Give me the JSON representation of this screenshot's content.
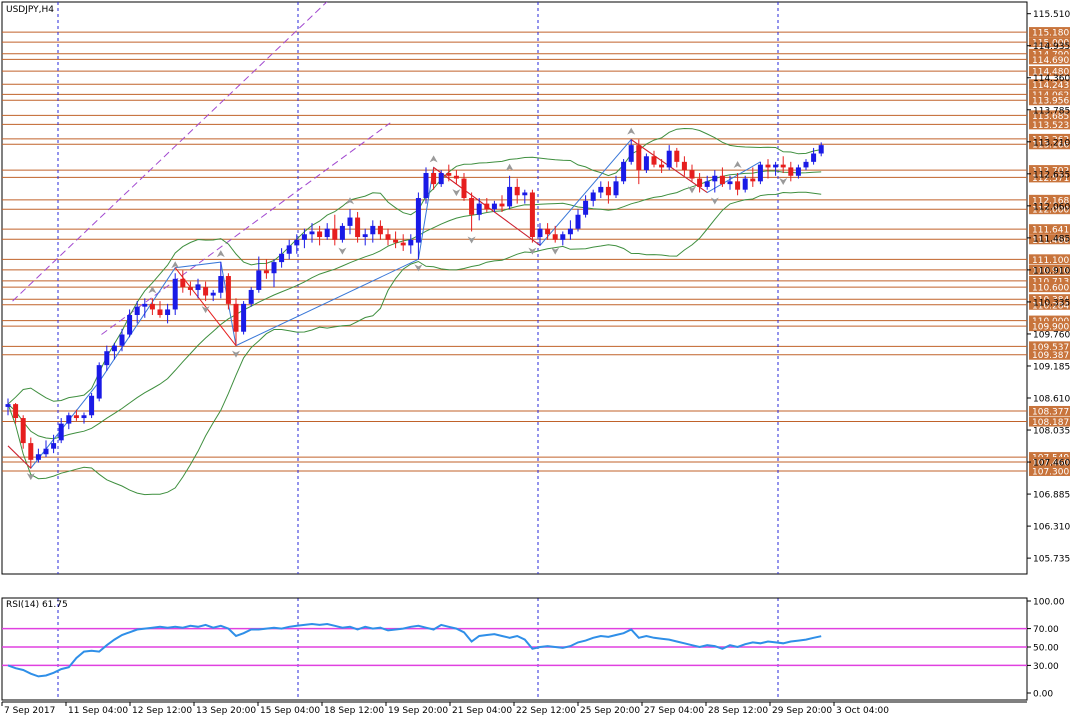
{
  "chart_data": {
    "type": "candlestick",
    "symbol_label": "USDJPY,H4",
    "y_ticks": [
      "115.510",
      "114.935",
      "114.360",
      "113.785",
      "113.210",
      "112.635",
      "112.060",
      "111.485",
      "110.910",
      "110.335",
      "109.760",
      "109.185",
      "108.610",
      "108.035",
      "107.460",
      "106.885",
      "106.310",
      "105.735"
    ],
    "x_tick_labels": [
      "7 Sep 2017",
      "11 Sep 04:00",
      "12 Sep 12:00",
      "13 Sep 20:00",
      "15 Sep 04:00",
      "18 Sep 12:00",
      "19 Sep 20:00",
      "21 Sep 04:00",
      "22 Sep 12:00",
      "25 Sep 20:00",
      "27 Sep 04:00",
      "28 Sep 12:00",
      "29 Sep 20:00",
      "3 Oct 04:00"
    ],
    "ylim": [
      105.45,
      115.72
    ],
    "levels": [
      "115.180",
      "115.000",
      "114.790",
      "114.690",
      "114.480",
      "114.243",
      "114.062",
      "113.956",
      "113.685",
      "113.523",
      "113.262",
      "113.166",
      "112.702",
      "112.571",
      "112.168",
      "112.000",
      "111.641",
      "111.460",
      "111.100",
      "110.910",
      "110.713",
      "110.600",
      "110.384",
      "110.284",
      "110.000",
      "109.900",
      "109.537",
      "109.387",
      "108.377",
      "108.187",
      "107.549",
      "107.460",
      "107.300"
    ],
    "channel_lines": [
      {
        "x": [
          0.6,
          42.4
        ],
        "y": [
          110.35,
          115.78
        ]
      },
      {
        "x": [
          12.3,
          50.3
        ],
        "y": [
          109.75,
          113.55
        ]
      }
    ],
    "candles": [
      {
        "i": 0,
        "o": 108.45,
        "h": 108.6,
        "l": 108.3,
        "c": 108.5
      },
      {
        "i": 1,
        "o": 108.5,
        "h": 108.52,
        "l": 108.15,
        "c": 108.25
      },
      {
        "i": 2,
        "o": 108.25,
        "h": 108.3,
        "l": 107.7,
        "c": 107.8
      },
      {
        "i": 3,
        "o": 107.8,
        "h": 107.9,
        "l": 107.35,
        "c": 107.5
      },
      {
        "i": 4,
        "o": 107.5,
        "h": 107.7,
        "l": 107.45,
        "c": 107.6
      },
      {
        "i": 5,
        "o": 107.6,
        "h": 107.85,
        "l": 107.55,
        "c": 107.7
      },
      {
        "i": 6,
        "o": 107.7,
        "h": 107.95,
        "l": 107.62,
        "c": 107.8
      },
      {
        "i": 7,
        "o": 107.85,
        "h": 108.25,
        "l": 107.8,
        "c": 108.15
      },
      {
        "i": 8,
        "o": 108.15,
        "h": 108.35,
        "l": 108.05,
        "c": 108.3
      },
      {
        "i": 9,
        "o": 108.3,
        "h": 108.4,
        "l": 108.2,
        "c": 108.25
      },
      {
        "i": 10,
        "o": 108.25,
        "h": 108.35,
        "l": 108.15,
        "c": 108.3
      },
      {
        "i": 11,
        "o": 108.3,
        "h": 108.7,
        "l": 108.25,
        "c": 108.65
      },
      {
        "i": 12,
        "o": 108.6,
        "h": 109.25,
        "l": 108.55,
        "c": 109.2
      },
      {
        "i": 13,
        "o": 109.2,
        "h": 109.55,
        "l": 109.1,
        "c": 109.45
      },
      {
        "i": 14,
        "o": 109.45,
        "h": 109.6,
        "l": 109.3,
        "c": 109.55
      },
      {
        "i": 15,
        "o": 109.55,
        "h": 109.85,
        "l": 109.45,
        "c": 109.75
      },
      {
        "i": 16,
        "o": 109.75,
        "h": 110.2,
        "l": 109.7,
        "c": 110.1
      },
      {
        "i": 17,
        "o": 110.1,
        "h": 110.35,
        "l": 109.95,
        "c": 110.25
      },
      {
        "i": 18,
        "o": 110.25,
        "h": 110.4,
        "l": 110.05,
        "c": 110.3
      },
      {
        "i": 19,
        "o": 110.3,
        "h": 110.4,
        "l": 110.1,
        "c": 110.2
      },
      {
        "i": 20,
        "o": 110.2,
        "h": 110.35,
        "l": 110.05,
        "c": 110.1
      },
      {
        "i": 21,
        "o": 110.1,
        "h": 110.3,
        "l": 109.95,
        "c": 110.2
      },
      {
        "i": 22,
        "o": 110.2,
        "h": 110.85,
        "l": 110.1,
        "c": 110.75
      },
      {
        "i": 23,
        "o": 110.75,
        "h": 110.9,
        "l": 110.5,
        "c": 110.6
      },
      {
        "i": 24,
        "o": 110.6,
        "h": 110.7,
        "l": 110.45,
        "c": 110.55
      },
      {
        "i": 25,
        "o": 110.55,
        "h": 110.75,
        "l": 110.4,
        "c": 110.65
      },
      {
        "i": 26,
        "o": 110.6,
        "h": 110.7,
        "l": 110.35,
        "c": 110.45
      },
      {
        "i": 27,
        "o": 110.45,
        "h": 110.55,
        "l": 110.35,
        "c": 110.5
      },
      {
        "i": 28,
        "o": 110.5,
        "h": 111.05,
        "l": 110.4,
        "c": 110.8
      },
      {
        "i": 29,
        "o": 110.8,
        "h": 110.85,
        "l": 110.2,
        "c": 110.3
      },
      {
        "i": 30,
        "o": 110.3,
        "h": 110.4,
        "l": 109.55,
        "c": 109.8
      },
      {
        "i": 31,
        "o": 109.8,
        "h": 110.35,
        "l": 109.75,
        "c": 110.3
      },
      {
        "i": 32,
        "o": 110.3,
        "h": 110.6,
        "l": 110.25,
        "c": 110.55
      },
      {
        "i": 33,
        "o": 110.55,
        "h": 111.15,
        "l": 110.5,
        "c": 110.9
      },
      {
        "i": 34,
        "o": 110.9,
        "h": 111.1,
        "l": 110.75,
        "c": 110.85
      },
      {
        "i": 35,
        "o": 110.85,
        "h": 111.1,
        "l": 110.6,
        "c": 111.05
      },
      {
        "i": 36,
        "o": 111.05,
        "h": 111.3,
        "l": 110.95,
        "c": 111.2
      },
      {
        "i": 37,
        "o": 111.2,
        "h": 111.45,
        "l": 111.1,
        "c": 111.35
      },
      {
        "i": 38,
        "o": 111.35,
        "h": 111.55,
        "l": 111.2,
        "c": 111.45
      },
      {
        "i": 39,
        "o": 111.45,
        "h": 111.65,
        "l": 111.3,
        "c": 111.55
      },
      {
        "i": 40,
        "o": 111.55,
        "h": 111.75,
        "l": 111.4,
        "c": 111.6
      },
      {
        "i": 41,
        "o": 111.6,
        "h": 111.7,
        "l": 111.35,
        "c": 111.5
      },
      {
        "i": 42,
        "o": 111.5,
        "h": 111.75,
        "l": 111.45,
        "c": 111.65
      },
      {
        "i": 43,
        "o": 111.65,
        "h": 111.9,
        "l": 111.35,
        "c": 111.45
      },
      {
        "i": 44,
        "o": 111.45,
        "h": 111.75,
        "l": 111.4,
        "c": 111.7
      },
      {
        "i": 45,
        "o": 111.7,
        "h": 112.0,
        "l": 111.55,
        "c": 111.85
      },
      {
        "i": 46,
        "o": 111.85,
        "h": 111.95,
        "l": 111.4,
        "c": 111.5
      },
      {
        "i": 47,
        "o": 111.5,
        "h": 111.65,
        "l": 111.35,
        "c": 111.55
      },
      {
        "i": 48,
        "o": 111.55,
        "h": 111.8,
        "l": 111.4,
        "c": 111.7
      },
      {
        "i": 49,
        "o": 111.7,
        "h": 111.8,
        "l": 111.45,
        "c": 111.55
      },
      {
        "i": 50,
        "o": 111.55,
        "h": 111.65,
        "l": 111.35,
        "c": 111.45
      },
      {
        "i": 51,
        "o": 111.45,
        "h": 111.6,
        "l": 111.3,
        "c": 111.4
      },
      {
        "i": 52,
        "o": 111.4,
        "h": 111.55,
        "l": 111.25,
        "c": 111.35
      },
      {
        "i": 53,
        "o": 111.35,
        "h": 111.55,
        "l": 111.2,
        "c": 111.45
      },
      {
        "i": 54,
        "o": 111.4,
        "h": 112.3,
        "l": 111.1,
        "c": 112.2
      },
      {
        "i": 55,
        "o": 112.2,
        "h": 112.75,
        "l": 112.1,
        "c": 112.65
      },
      {
        "i": 56,
        "o": 112.65,
        "h": 112.75,
        "l": 112.35,
        "c": 112.45
      },
      {
        "i": 57,
        "o": 112.45,
        "h": 112.7,
        "l": 112.4,
        "c": 112.65
      },
      {
        "i": 58,
        "o": 112.65,
        "h": 112.8,
        "l": 112.5,
        "c": 112.6
      },
      {
        "i": 59,
        "o": 112.6,
        "h": 112.7,
        "l": 112.45,
        "c": 112.55
      },
      {
        "i": 60,
        "o": 112.55,
        "h": 112.65,
        "l": 112.15,
        "c": 112.2
      },
      {
        "i": 61,
        "o": 112.2,
        "h": 112.3,
        "l": 111.6,
        "c": 111.9
      },
      {
        "i": 62,
        "o": 111.9,
        "h": 112.2,
        "l": 111.8,
        "c": 112.1
      },
      {
        "i": 63,
        "o": 112.1,
        "h": 112.2,
        "l": 111.95,
        "c": 112.0
      },
      {
        "i": 64,
        "o": 112.0,
        "h": 112.15,
        "l": 111.95,
        "c": 112.1
      },
      {
        "i": 65,
        "o": 112.1,
        "h": 112.25,
        "l": 111.95,
        "c": 112.05
      },
      {
        "i": 66,
        "o": 112.05,
        "h": 112.6,
        "l": 112.0,
        "c": 112.4
      },
      {
        "i": 67,
        "o": 112.4,
        "h": 112.55,
        "l": 112.1,
        "c": 112.25
      },
      {
        "i": 68,
        "o": 112.25,
        "h": 112.35,
        "l": 112.1,
        "c": 112.3
      },
      {
        "i": 69,
        "o": 112.3,
        "h": 112.35,
        "l": 111.4,
        "c": 111.5
      },
      {
        "i": 70,
        "o": 111.5,
        "h": 111.75,
        "l": 111.35,
        "c": 111.65
      },
      {
        "i": 71,
        "o": 111.65,
        "h": 111.75,
        "l": 111.45,
        "c": 111.55
      },
      {
        "i": 72,
        "o": 111.55,
        "h": 111.7,
        "l": 111.4,
        "c": 111.45
      },
      {
        "i": 73,
        "o": 111.45,
        "h": 111.6,
        "l": 111.35,
        "c": 111.55
      },
      {
        "i": 74,
        "o": 111.55,
        "h": 111.8,
        "l": 111.45,
        "c": 111.65
      },
      {
        "i": 75,
        "o": 111.65,
        "h": 112.0,
        "l": 111.6,
        "c": 111.9
      },
      {
        "i": 76,
        "o": 111.9,
        "h": 112.25,
        "l": 111.85,
        "c": 112.15
      },
      {
        "i": 77,
        "o": 112.15,
        "h": 112.35,
        "l": 112.05,
        "c": 112.3
      },
      {
        "i": 78,
        "o": 112.3,
        "h": 112.5,
        "l": 112.2,
        "c": 112.4
      },
      {
        "i": 79,
        "o": 112.4,
        "h": 112.5,
        "l": 112.1,
        "c": 112.25
      },
      {
        "i": 80,
        "o": 112.25,
        "h": 112.6,
        "l": 112.2,
        "c": 112.5
      },
      {
        "i": 81,
        "o": 112.5,
        "h": 112.9,
        "l": 112.45,
        "c": 112.85
      },
      {
        "i": 82,
        "o": 112.85,
        "h": 113.25,
        "l": 112.8,
        "c": 113.15
      },
      {
        "i": 83,
        "o": 113.15,
        "h": 113.25,
        "l": 112.45,
        "c": 112.7
      },
      {
        "i": 84,
        "o": 112.7,
        "h": 113.0,
        "l": 112.65,
        "c": 112.95
      },
      {
        "i": 85,
        "o": 112.95,
        "h": 113.05,
        "l": 112.75,
        "c": 112.8
      },
      {
        "i": 86,
        "o": 112.8,
        "h": 112.9,
        "l": 112.65,
        "c": 112.75
      },
      {
        "i": 87,
        "o": 112.75,
        "h": 113.15,
        "l": 112.7,
        "c": 113.05
      },
      {
        "i": 88,
        "o": 113.05,
        "h": 113.1,
        "l": 112.75,
        "c": 112.85
      },
      {
        "i": 89,
        "o": 112.85,
        "h": 112.95,
        "l": 112.6,
        "c": 112.7
      },
      {
        "i": 90,
        "o": 112.7,
        "h": 112.8,
        "l": 112.5,
        "c": 112.55
      },
      {
        "i": 91,
        "o": 112.55,
        "h": 112.65,
        "l": 112.3,
        "c": 112.4
      },
      {
        "i": 92,
        "o": 112.4,
        "h": 112.6,
        "l": 112.35,
        "c": 112.5
      },
      {
        "i": 93,
        "o": 112.5,
        "h": 112.7,
        "l": 112.3,
        "c": 112.6
      },
      {
        "i": 94,
        "o": 112.6,
        "h": 112.75,
        "l": 112.4,
        "c": 112.45
      },
      {
        "i": 95,
        "o": 112.45,
        "h": 112.6,
        "l": 112.35,
        "c": 112.5
      },
      {
        "i": 96,
        "o": 112.5,
        "h": 112.65,
        "l": 112.25,
        "c": 112.35
      },
      {
        "i": 97,
        "o": 112.35,
        "h": 112.6,
        "l": 112.3,
        "c": 112.55
      },
      {
        "i": 98,
        "o": 112.55,
        "h": 112.75,
        "l": 112.4,
        "c": 112.5
      },
      {
        "i": 99,
        "o": 112.5,
        "h": 112.85,
        "l": 112.45,
        "c": 112.8
      },
      {
        "i": 100,
        "o": 112.8,
        "h": 112.9,
        "l": 112.55,
        "c": 112.75
      },
      {
        "i": 101,
        "o": 112.75,
        "h": 112.85,
        "l": 112.6,
        "c": 112.8
      },
      {
        "i": 102,
        "o": 112.8,
        "h": 112.95,
        "l": 112.65,
        "c": 112.75
      },
      {
        "i": 103,
        "o": 112.75,
        "h": 112.85,
        "l": 112.5,
        "c": 112.6
      },
      {
        "i": 104,
        "o": 112.6,
        "h": 112.8,
        "l": 112.55,
        "c": 112.75
      },
      {
        "i": 105,
        "o": 112.75,
        "h": 112.9,
        "l": 112.7,
        "c": 112.85
      },
      {
        "i": 106,
        "o": 112.85,
        "h": 113.1,
        "l": 112.8,
        "c": 113.0
      },
      {
        "i": 107,
        "o": 113.0,
        "h": 113.2,
        "l": 112.95,
        "c": 113.15
      }
    ],
    "zigzag": [
      [
        0,
        107.75
      ],
      [
        3,
        107.35
      ],
      [
        12,
        108.9
      ],
      [
        22,
        110.95
      ],
      [
        28,
        111.05
      ],
      [
        30,
        109.55
      ],
      [
        54,
        111.1
      ],
      [
        56,
        112.75
      ],
      [
        70,
        111.35
      ],
      [
        82,
        113.25
      ],
      [
        92,
        112.3
      ],
      [
        99,
        112.85
      ]
    ],
    "fractals": [
      {
        "i": 3,
        "kind": "down"
      },
      {
        "i": 19,
        "kind": "up"
      },
      {
        "i": 22,
        "kind": "up"
      },
      {
        "i": 26,
        "kind": "down"
      },
      {
        "i": 28,
        "kind": "up"
      },
      {
        "i": 30,
        "kind": "down"
      },
      {
        "i": 45,
        "kind": "up"
      },
      {
        "i": 44,
        "kind": "down"
      },
      {
        "i": 54,
        "kind": "down"
      },
      {
        "i": 56,
        "kind": "up"
      },
      {
        "i": 59,
        "kind": "down"
      },
      {
        "i": 61,
        "kind": "down"
      },
      {
        "i": 66,
        "kind": "up"
      },
      {
        "i": 69,
        "kind": "down"
      },
      {
        "i": 72,
        "kind": "down"
      },
      {
        "i": 82,
        "kind": "up"
      },
      {
        "i": 90,
        "kind": "down"
      },
      {
        "i": 93,
        "kind": "down"
      },
      {
        "i": 96,
        "kind": "up"
      },
      {
        "i": 102,
        "kind": "down"
      }
    ],
    "rsi": {
      "label": "RSI(14) 61.75",
      "levels": [
        70,
        50,
        30
      ],
      "ticks": [
        "100.00",
        "70.00",
        "50.00",
        "30.00",
        "0.00"
      ],
      "values": [
        30,
        27,
        25,
        21,
        18,
        19,
        22,
        26,
        28,
        38,
        45,
        46,
        45,
        52,
        58,
        63,
        66,
        69,
        70,
        71,
        72,
        71,
        72,
        71,
        73,
        72,
        74,
        71,
        73,
        70,
        62,
        65,
        69,
        69,
        70,
        71,
        70,
        72,
        73,
        74,
        75,
        74,
        75,
        73,
        71,
        72,
        69,
        72,
        70,
        71,
        68,
        69,
        70,
        72,
        73,
        71,
        69,
        74,
        72,
        70,
        66,
        56,
        62,
        63,
        64,
        62,
        60,
        62,
        58,
        48,
        50,
        51,
        50,
        49,
        51,
        55,
        57,
        60,
        62,
        61,
        63,
        65,
        69,
        60,
        62,
        60,
        59,
        58,
        56,
        54,
        52,
        50,
        52,
        51,
        48,
        52,
        50,
        53,
        55,
        54,
        56,
        55,
        54,
        56,
        57,
        58,
        60,
        61.75
      ]
    }
  },
  "theme": {
    "up_color": "#1a1ae6",
    "down_color": "#e61e1e",
    "level_color": "#c0622a",
    "level_label_bg": "#c8743c",
    "channel_color": "#a24ad0",
    "band_color": "#3f8f3f",
    "zigzag_color": "#3a78d8",
    "rsi_color": "#2f8fe8",
    "rsi_level_color": "#e040e0",
    "vline_color": "#2a2ad8"
  }
}
